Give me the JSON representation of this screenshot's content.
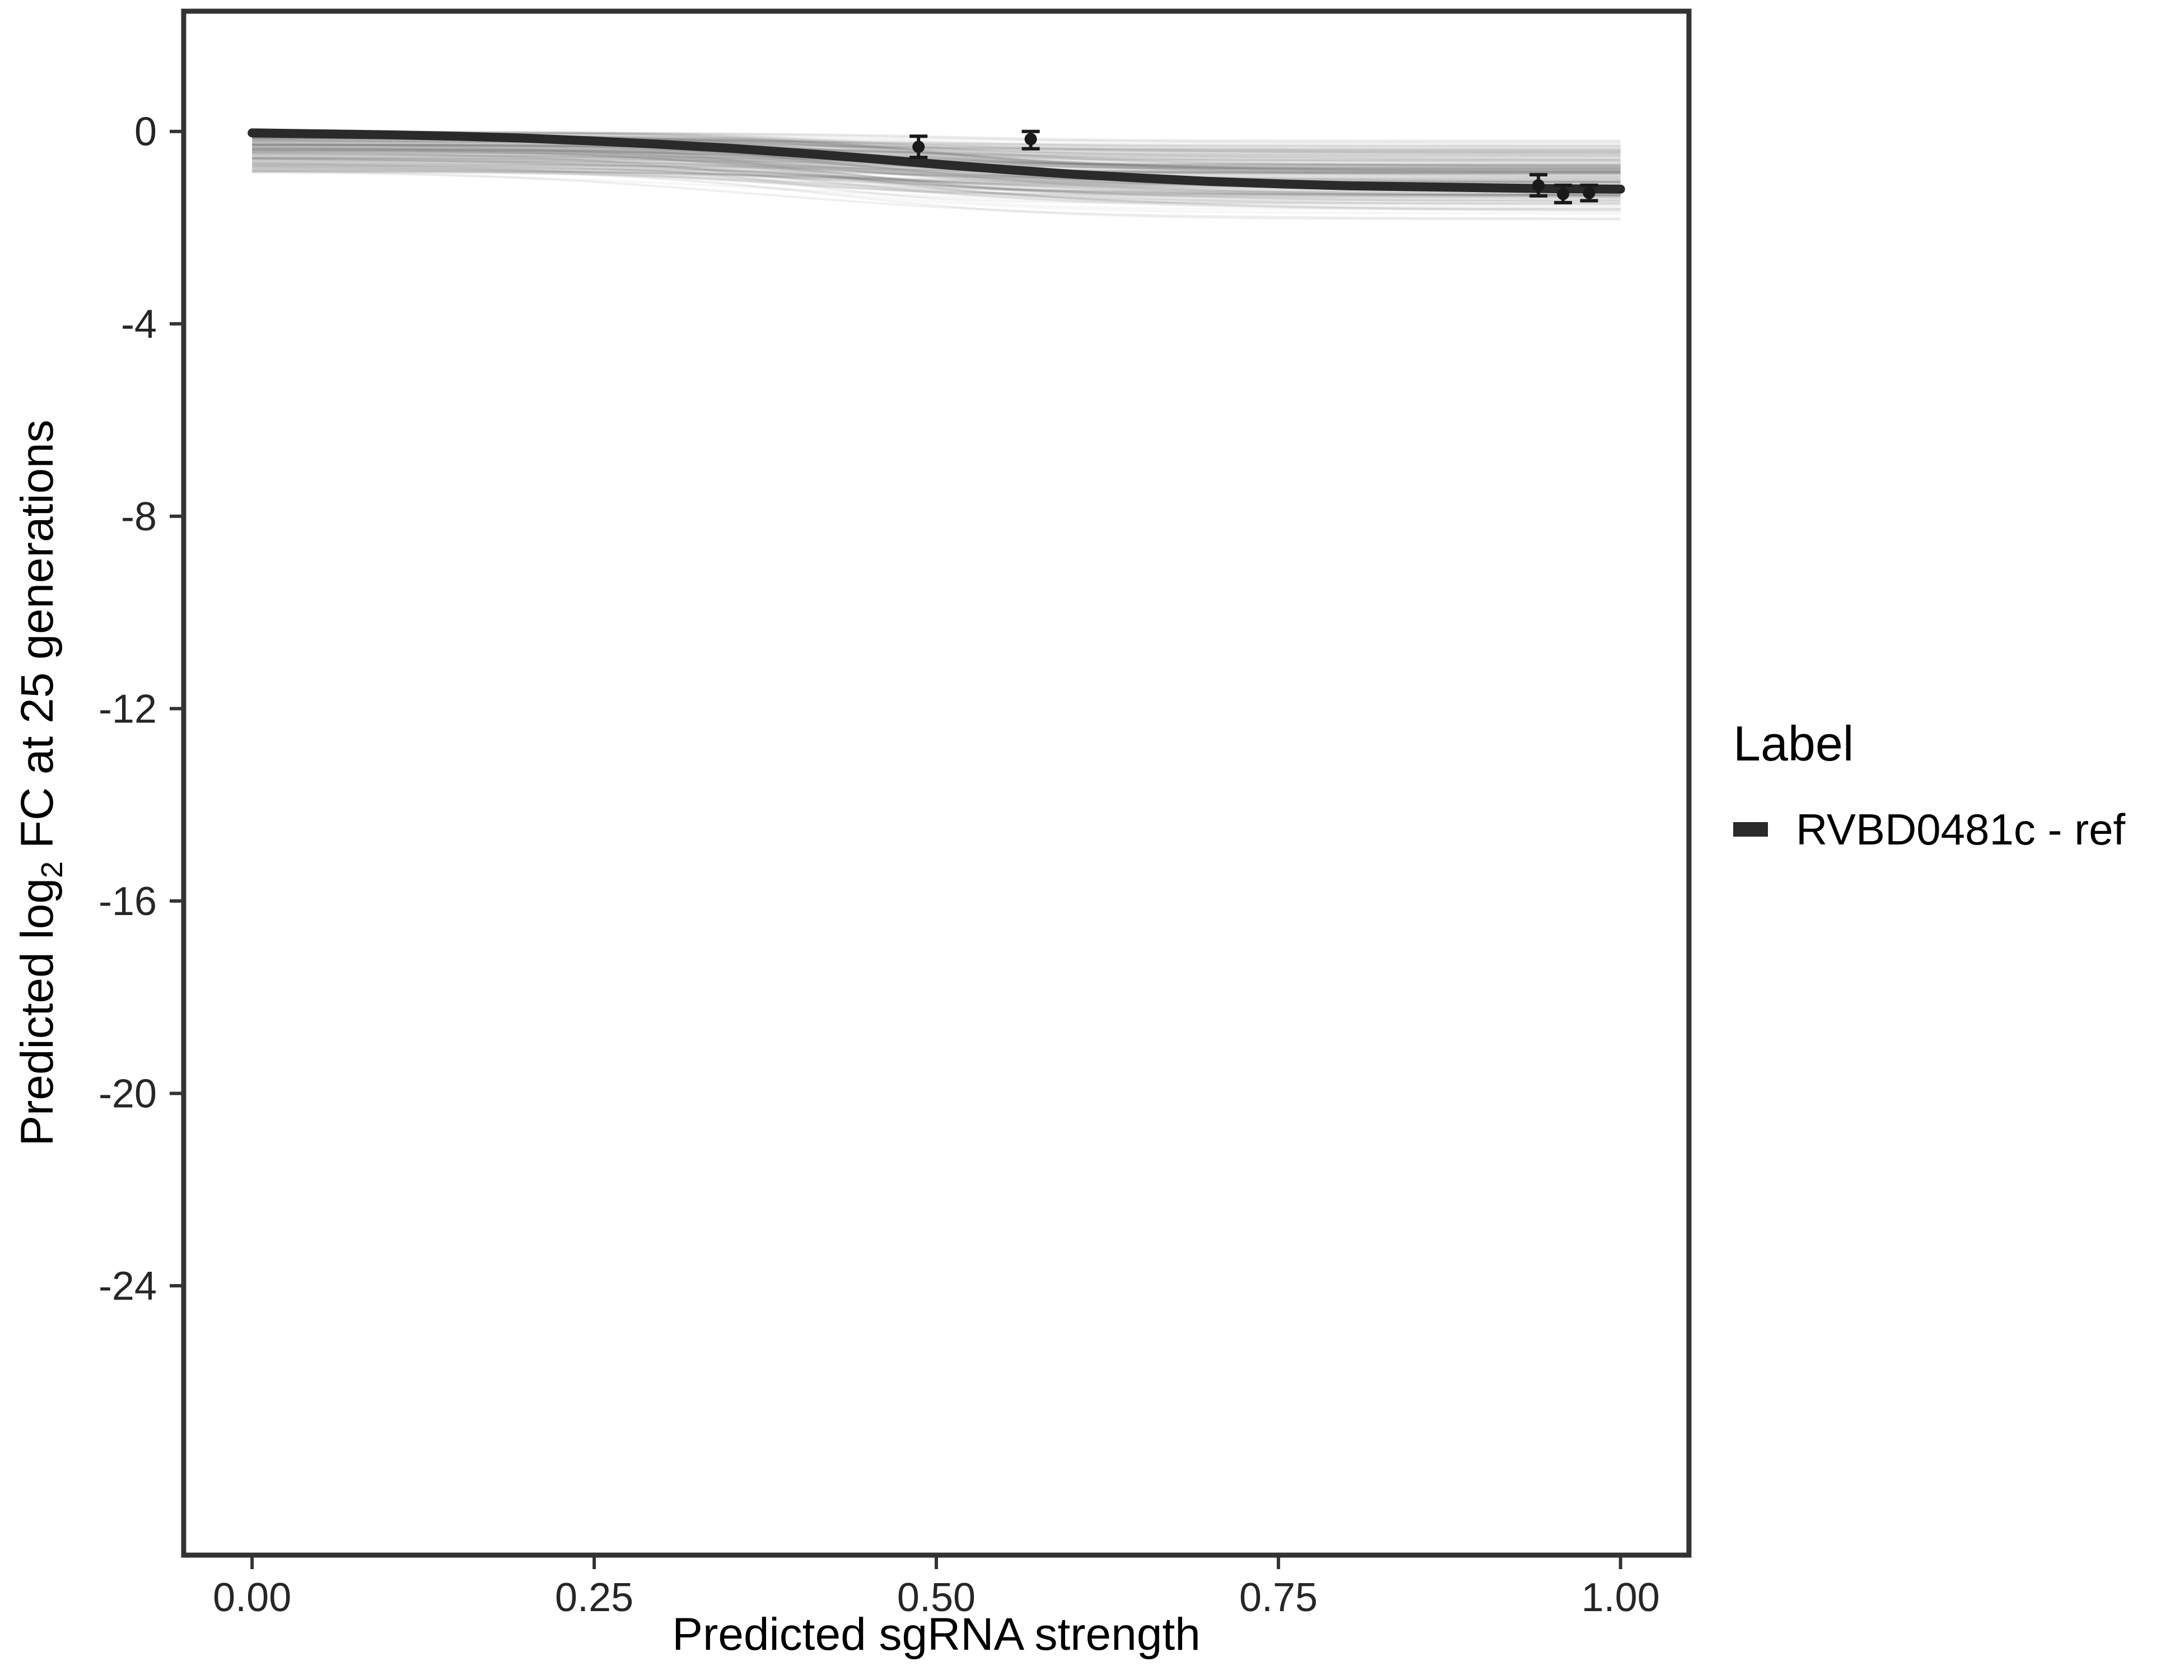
{
  "chart_data": {
    "type": "line",
    "xlabel": "Predicted sgRNA strength",
    "ylabel": {
      "prefix": "Predicted  log",
      "sub": "2",
      "suffix": " FC at 25 generations"
    },
    "xlim": [
      -0.05,
      1.05
    ],
    "ylim": [
      -29.6,
      2.5
    ],
    "grid": false,
    "x_ticks": [
      {
        "value": 0,
        "label": "0.00"
      },
      {
        "value": 0.25,
        "label": "0.25"
      },
      {
        "value": 0.5,
        "label": "0.50"
      },
      {
        "value": 0.75,
        "label": "0.75"
      },
      {
        "value": 1,
        "label": "1.00"
      }
    ],
    "y_ticks": [
      {
        "value": 0,
        "label": "0"
      },
      {
        "value": -4,
        "label": "-4"
      },
      {
        "value": -8,
        "label": "-8"
      },
      {
        "value": -12,
        "label": "-12"
      },
      {
        "value": -16,
        "label": "-16"
      },
      {
        "value": -20,
        "label": "-20"
      },
      {
        "value": -24,
        "label": "-24"
      }
    ],
    "legend": {
      "title": "Label",
      "position": "right",
      "entries": [
        {
          "label": "RVBD0481c - ref",
          "color": "#2a2a2a"
        }
      ]
    },
    "series": [
      {
        "name": "RVBD0481c - ref",
        "color": "#2a2a2a",
        "stroke_width": 16,
        "x": [
          0,
          0.05,
          0.1,
          0.15,
          0.2,
          0.25,
          0.3,
          0.35,
          0.4,
          0.45,
          0.5,
          0.55,
          0.6,
          0.65,
          0.7,
          0.75,
          0.8,
          0.85,
          0.9,
          0.95,
          1
        ],
        "y": [
          -0.03,
          -0.05,
          -0.07,
          -0.1,
          -0.14,
          -0.2,
          -0.27,
          -0.35,
          -0.45,
          -0.56,
          -0.68,
          -0.79,
          -0.89,
          -0.97,
          -1.04,
          -1.09,
          -1.13,
          -1.15,
          -1.17,
          -1.19,
          -1.2
        ]
      }
    ],
    "points": [
      {
        "x": 0.487,
        "y": -0.32,
        "ymin": -0.54,
        "ymax": -0.1
      },
      {
        "x": 0.569,
        "y": -0.16,
        "ymin": -0.36,
        "ymax": 0
      },
      {
        "x": 0.94,
        "y": -1.12,
        "ymin": -1.34,
        "ymax": -0.9
      },
      {
        "x": 0.958,
        "y": -1.3,
        "ymin": -1.48,
        "ymax": -1.12
      },
      {
        "x": 0.977,
        "y": -1.28,
        "ymin": -1.44,
        "ymax": -1.12
      }
    ],
    "ensemble": {
      "count": 160,
      "seed": 11,
      "color": "#6b6b6b",
      "stroke_width": 4,
      "opacity_range": [
        0.04,
        0.14
      ],
      "baseline_range": [
        0,
        0.85
      ],
      "depth_range": [
        0.15,
        1.05
      ],
      "midpoint_range": [
        0.36,
        0.52
      ],
      "steepness_range": [
        7,
        18
      ]
    },
    "colors": {
      "axis": "#333333",
      "tick_text": "#262626",
      "panel_border": "#333333",
      "point": "#1a1a1a",
      "background": "#ffffff"
    }
  }
}
